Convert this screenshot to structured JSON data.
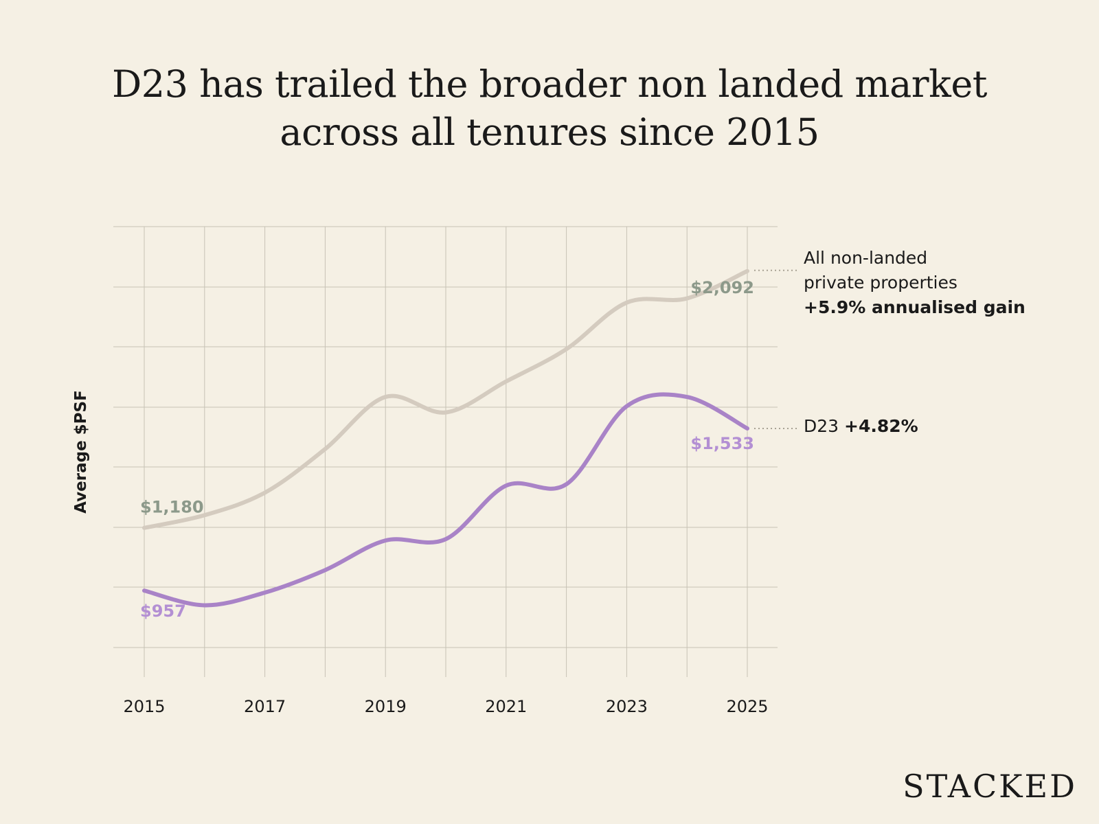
{
  "title": {
    "line1": "D23 has trailed the broader non landed market",
    "line2": "across all tenures since 2015"
  },
  "brand": "STACKED",
  "colors": {
    "background": "#f5f0e4",
    "all_line": "#d4cbbf",
    "all_label": "#8c998a",
    "d23_line": "#a983c7",
    "d23_label": "#b38fd3",
    "grid": "#c7c2b5"
  },
  "legend": {
    "all": {
      "line1": "All non-landed",
      "line2": "private properties",
      "gain": "+5.9% annualised gain"
    },
    "d23": {
      "name": "D23",
      "gain": "+4.82%"
    }
  },
  "chart_data": {
    "type": "line",
    "title": "D23 has trailed the broader non landed market across all tenures since 2015",
    "ylabel": "Average $PSF",
    "xlabel": "",
    "x": [
      2015,
      2016,
      2017,
      2018,
      2019,
      2020,
      2021,
      2022,
      2023,
      2024,
      2025
    ],
    "x_tick_labels": [
      "2015",
      "2017",
      "2019",
      "2021",
      "2023",
      "2025"
    ],
    "ylim": [
      650,
      2250
    ],
    "grid": true,
    "series": [
      {
        "name": "All non-landed private properties",
        "values": [
          1180,
          1225,
          1305,
          1460,
          1645,
          1590,
          1700,
          1815,
          1980,
          1995,
          2092
        ],
        "annotations": [
          {
            "x": 2015,
            "label": "$1,180"
          },
          {
            "x": 2025,
            "label": "$2,092"
          }
        ]
      },
      {
        "name": "D23",
        "values": [
          957,
          905,
          950,
          1030,
          1135,
          1140,
          1330,
          1335,
          1612,
          1645,
          1533
        ],
        "annotations": [
          {
            "x": 2015,
            "label": "$957"
          },
          {
            "x": 2025,
            "label": "$1,533"
          }
        ]
      }
    ]
  }
}
